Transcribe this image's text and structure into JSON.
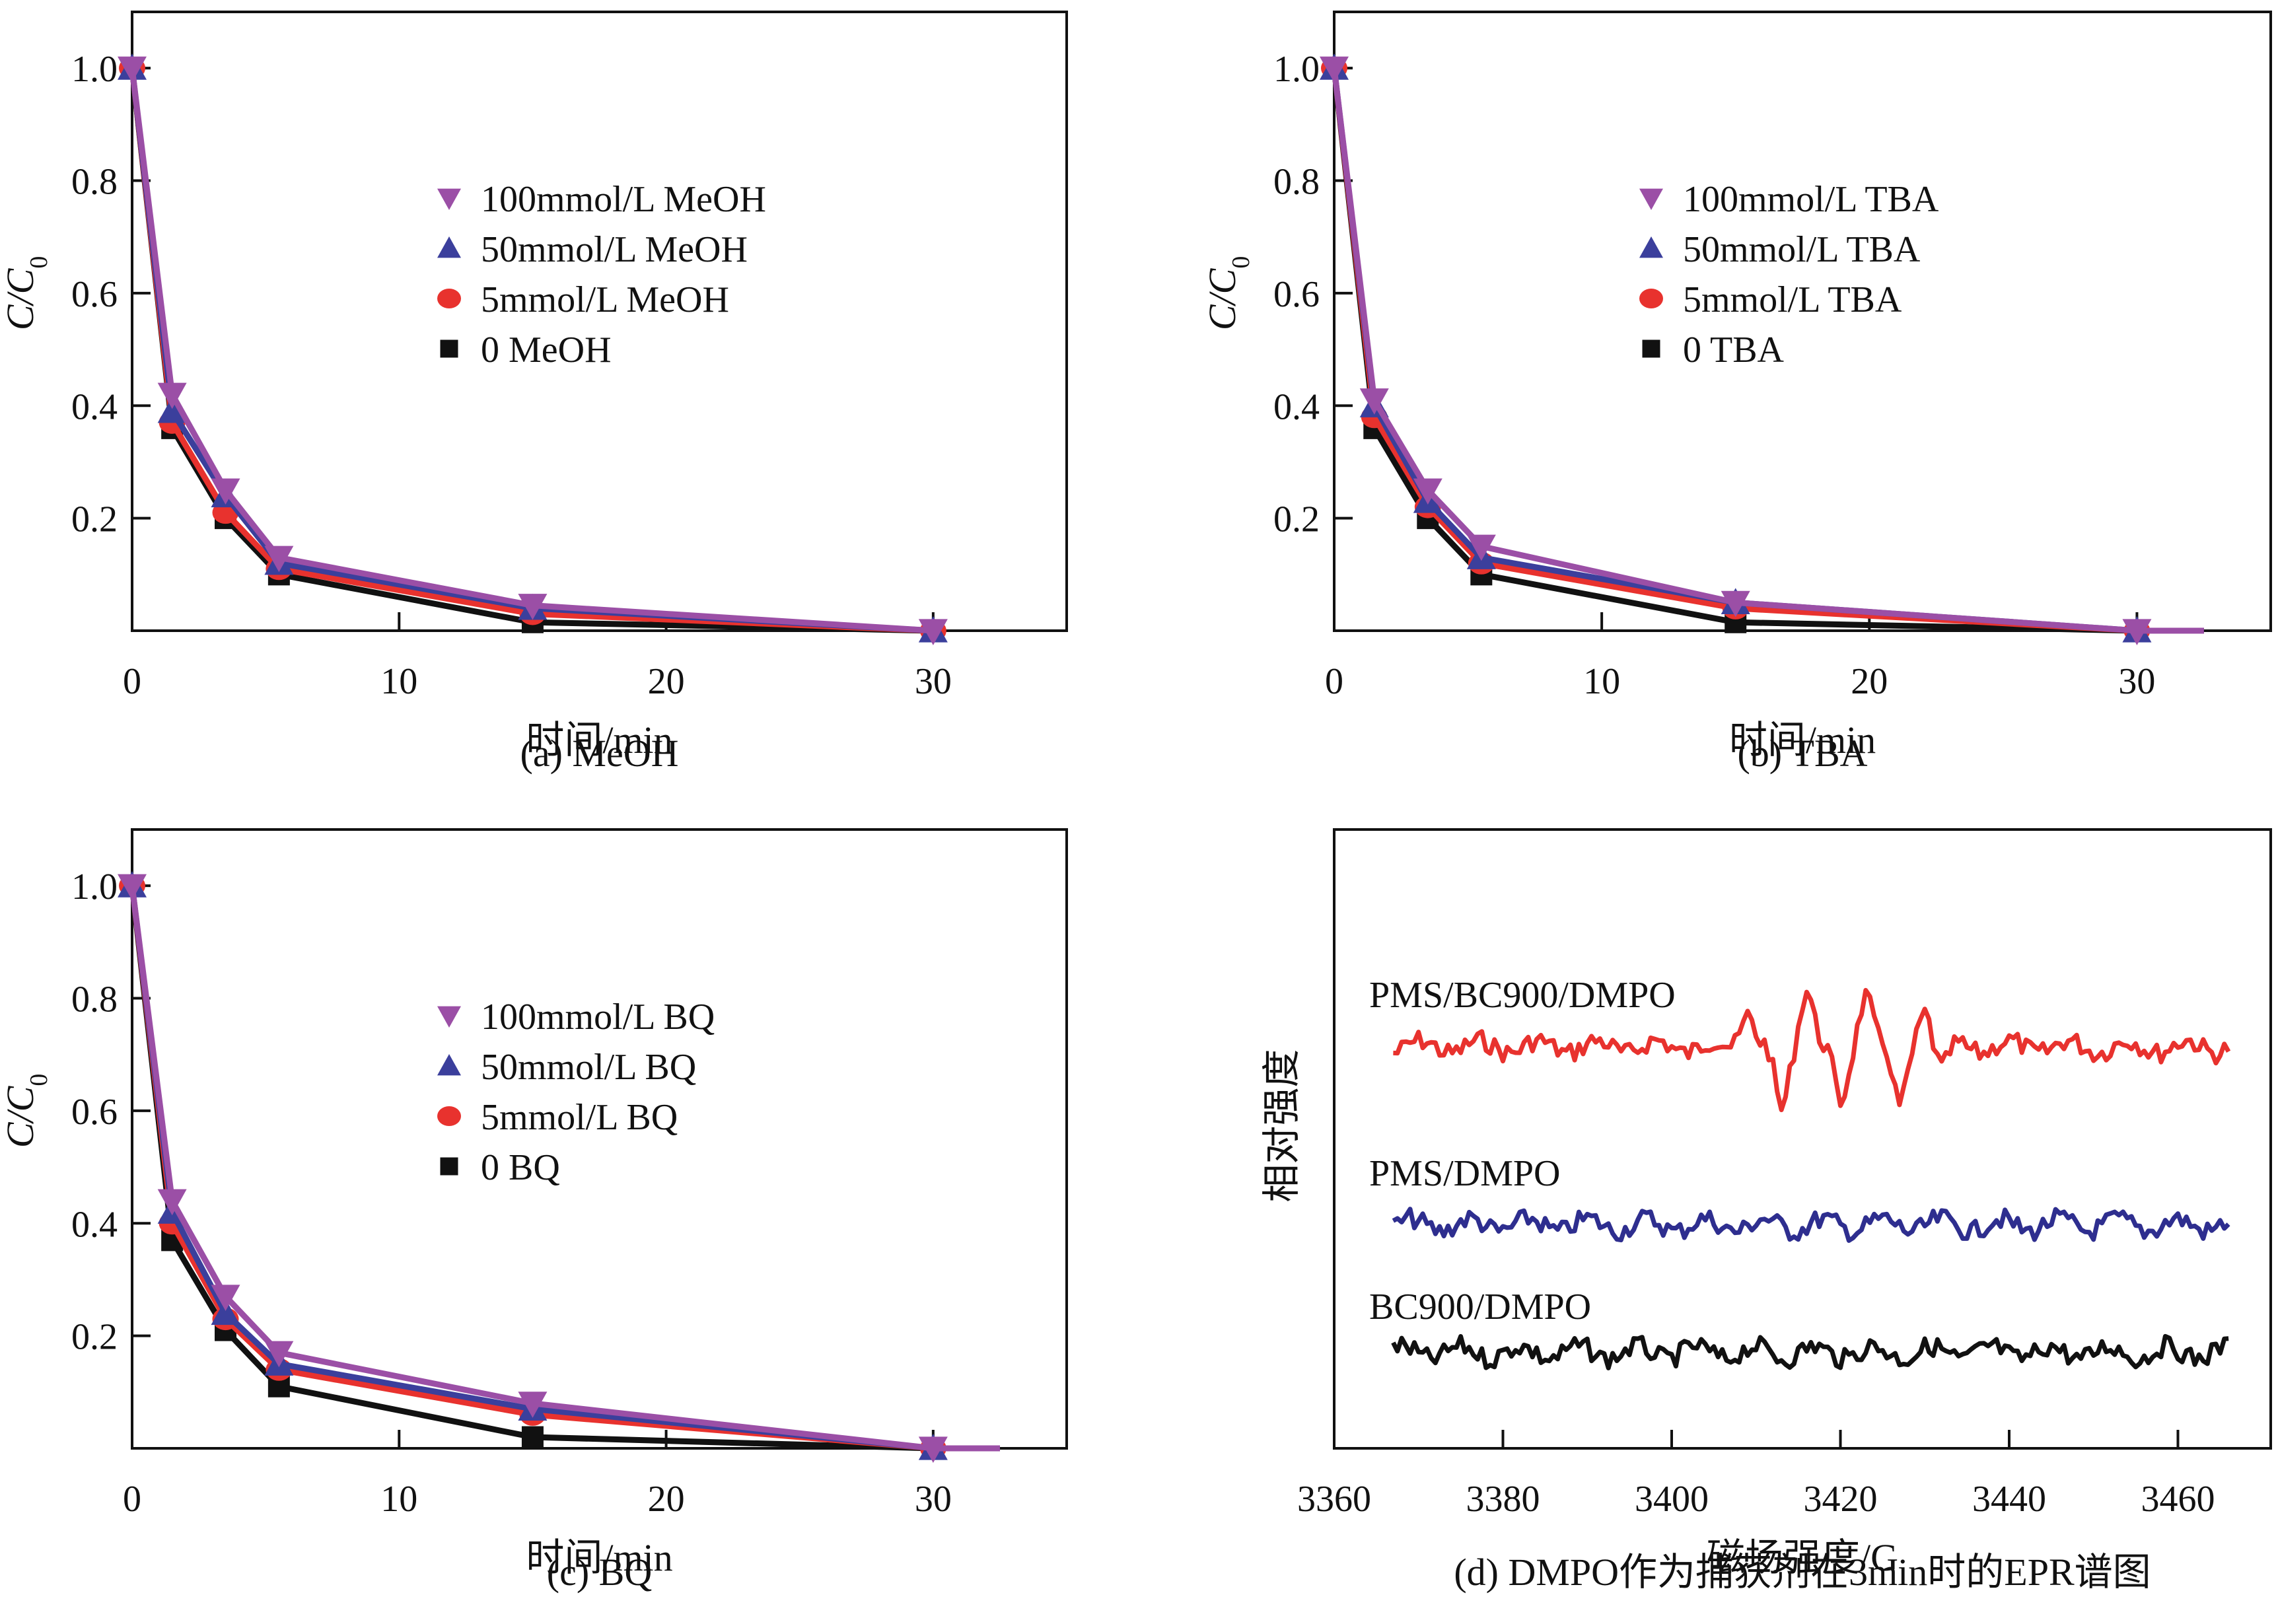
{
  "chart_data": [
    {
      "id": "a",
      "type": "line",
      "caption": "(a) MeOH",
      "xlabel": "时间/min",
      "ylabel": "C/C",
      "ylabel_subscript": "0",
      "xlim": [
        0,
        35
      ],
      "ylim": [
        0,
        1.1
      ],
      "xticks": [
        0,
        10,
        20,
        30
      ],
      "xtick_labels": [
        "0",
        "10",
        "20",
        "30"
      ],
      "yticks": [
        0.2,
        0.4,
        0.6,
        0.8,
        1.0
      ],
      "ytick_labels": [
        "0.2",
        "0.4",
        "0.6",
        "0.8",
        "1.0"
      ],
      "legend_position": "center",
      "x": [
        0,
        1.5,
        3.5,
        5.5,
        15,
        30
      ],
      "series": [
        {
          "name": "100mmol/L MeOH",
          "marker": "triangle-down",
          "color": "#9b4fa6",
          "values": [
            1.0,
            0.42,
            0.25,
            0.13,
            0.045,
            0.0
          ]
        },
        {
          "name": "50mmol/L MeOH",
          "marker": "triangle-up",
          "color": "#3b3f9c",
          "values": [
            1.0,
            0.39,
            0.24,
            0.12,
            0.04,
            0.0
          ]
        },
        {
          "name": "5mmol/L MeOH",
          "marker": "circle",
          "color": "#e8322e",
          "values": [
            1.0,
            0.37,
            0.21,
            0.11,
            0.03,
            0.0
          ]
        },
        {
          "name": "0 MeOH",
          "marker": "square",
          "color": "#111111",
          "values": [
            1.0,
            0.36,
            0.2,
            0.1,
            0.015,
            0.0
          ]
        }
      ]
    },
    {
      "id": "b",
      "type": "line",
      "caption": "(b) TBA",
      "xlabel": "时间/min",
      "ylabel": "C/C",
      "ylabel_subscript": "0",
      "xlim": [
        0,
        35
      ],
      "ylim": [
        0,
        1.1
      ],
      "xticks": [
        0,
        10,
        20,
        30
      ],
      "xtick_labels": [
        "0",
        "10",
        "20",
        "30"
      ],
      "yticks": [
        0.2,
        0.4,
        0.6,
        0.8,
        1.0
      ],
      "ytick_labels": [
        "0.2",
        "0.4",
        "0.6",
        "0.8",
        "1.0"
      ],
      "legend_position": "center",
      "x": [
        0,
        1.5,
        3.5,
        5.5,
        15,
        30
      ],
      "series": [
        {
          "name": "100mmol/L TBA",
          "marker": "triangle-down",
          "color": "#9b4fa6",
          "values": [
            1.0,
            0.41,
            0.25,
            0.15,
            0.05,
            0.0
          ]
        },
        {
          "name": "50mmol/L TBA",
          "marker": "triangle-up",
          "color": "#3b3f9c",
          "values": [
            1.0,
            0.4,
            0.23,
            0.13,
            0.05,
            0.0
          ]
        },
        {
          "name": "5mmol/L TBA",
          "marker": "circle",
          "color": "#e8322e",
          "values": [
            1.0,
            0.38,
            0.22,
            0.12,
            0.04,
            0.0
          ]
        },
        {
          "name": "0 TBA",
          "marker": "square",
          "color": "#111111",
          "values": [
            1.0,
            0.36,
            0.2,
            0.1,
            0.015,
            0.0
          ]
        }
      ]
    },
    {
      "id": "c",
      "type": "line",
      "caption": "(c) BQ",
      "xlabel": "时间/min",
      "ylabel": "C/C",
      "ylabel_subscript": "0",
      "xlim": [
        0,
        35
      ],
      "ylim": [
        0,
        1.1
      ],
      "xticks": [
        0,
        10,
        20,
        30
      ],
      "xtick_labels": [
        "0",
        "10",
        "20",
        "30"
      ],
      "yticks": [
        0.2,
        0.4,
        0.6,
        0.8,
        1.0
      ],
      "ytick_labels": [
        "0.2",
        "0.4",
        "0.6",
        "0.8",
        "1.0"
      ],
      "legend_position": "center",
      "x": [
        0,
        1.5,
        3.5,
        5.5,
        15,
        30
      ],
      "series": [
        {
          "name": "100mmol/L BQ",
          "marker": "triangle-down",
          "color": "#9b4fa6",
          "values": [
            1.0,
            0.44,
            0.27,
            0.17,
            0.08,
            0.0
          ]
        },
        {
          "name": "50mmol/L BQ",
          "marker": "triangle-up",
          "color": "#3b3f9c",
          "values": [
            1.0,
            0.42,
            0.24,
            0.15,
            0.07,
            0.0
          ]
        },
        {
          "name": "5mmol/L BQ",
          "marker": "circle",
          "color": "#e8322e",
          "values": [
            1.0,
            0.4,
            0.23,
            0.14,
            0.06,
            0.0
          ]
        },
        {
          "name": "0 BQ",
          "marker": "square",
          "color": "#111111",
          "values": [
            1.0,
            0.37,
            0.21,
            0.11,
            0.02,
            0.0
          ]
        }
      ]
    },
    {
      "id": "d",
      "type": "line",
      "caption": "(d) DMPO作为捕获剂在3min时的EPR谱图",
      "xlabel": "磁场强度/G",
      "ylabel": "相对强度",
      "xlim": [
        3360,
        3471
      ],
      "xticks": [
        3360,
        3380,
        3400,
        3420,
        3440,
        3460
      ],
      "xtick_labels": [
        "3360",
        "3380",
        "3400",
        "3420",
        "3440",
        "3460"
      ],
      "yticks": [],
      "x_range": [
        3367,
        3466
      ],
      "series": [
        {
          "name": "PMS/BC900/DMPO",
          "color": "#e8322e",
          "offset": 3,
          "peaks": [
            {
              "x": 3409,
              "amp": 0.55
            },
            {
              "x": 3413,
              "amp": -1.0
            },
            {
              "x": 3416,
              "amp": 0.95
            },
            {
              "x": 3420,
              "amp": -0.9
            },
            {
              "x": 3423,
              "amp": 0.85
            },
            {
              "x": 3427,
              "amp": -0.95
            },
            {
              "x": 3430,
              "amp": 0.6
            },
            {
              "x": 3432,
              "amp": -0.4
            }
          ]
        },
        {
          "name": "PMS/DMPO",
          "color": "#2e2e8f",
          "offset": 1.7,
          "peaks": []
        },
        {
          "name": "BC900/DMPO",
          "color": "#111111",
          "offset": 0.6,
          "peaks": []
        }
      ]
    }
  ]
}
